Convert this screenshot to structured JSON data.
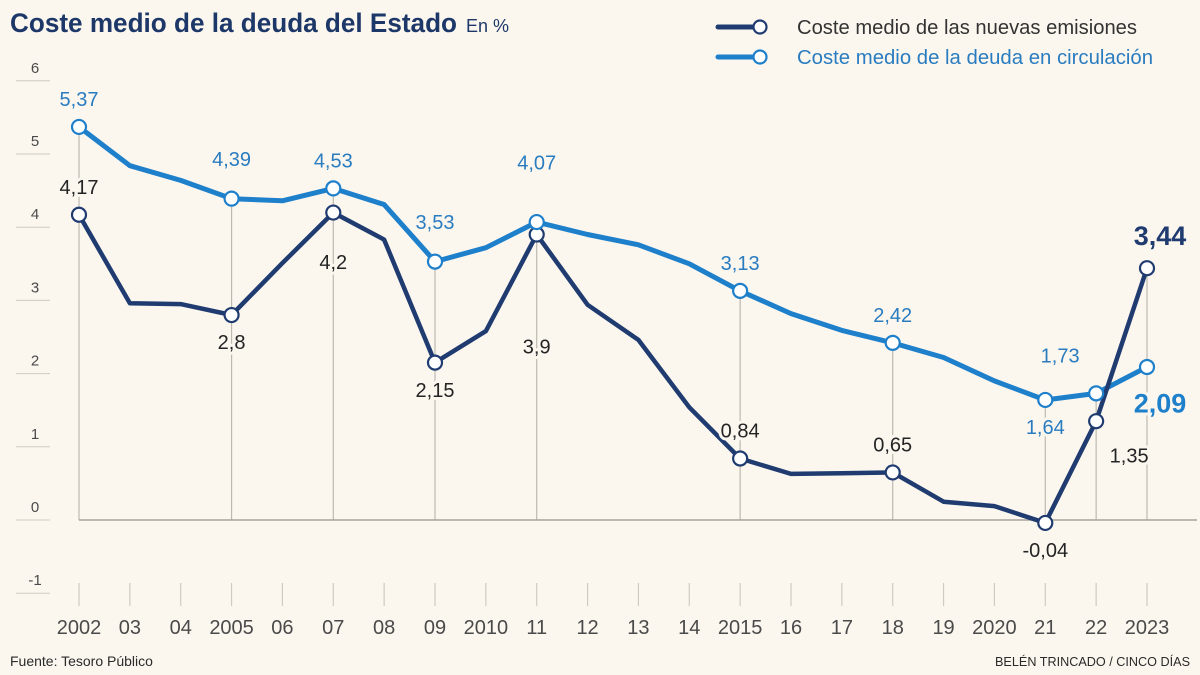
{
  "colors": {
    "background": "#fbf7ef",
    "title": "#1d3868",
    "axis_text": "#4a4a4a",
    "grid": "#cfcbc3",
    "zero_line": "#a7a39b",
    "marker_fill": "#ffffff"
  },
  "footer": {
    "source": "Fuente: Tesoro Público",
    "credit": "BELÉN TRINCADO / CINCO DÍAS"
  },
  "chart_data": {
    "type": "line",
    "title": "Coste medio de la deuda del Estado",
    "subtitle": "En %",
    "xlabel": "",
    "ylabel": "",
    "x": [
      2002,
      2003,
      2004,
      2005,
      2006,
      2007,
      2008,
      2009,
      2010,
      2011,
      2012,
      2013,
      2014,
      2015,
      2016,
      2017,
      2018,
      2019,
      2020,
      2021,
      2022,
      2023
    ],
    "x_tick_labels": [
      "2002",
      "03",
      "04",
      "2005",
      "06",
      "07",
      "08",
      "09",
      "2010",
      "11",
      "12",
      "13",
      "14",
      "2015",
      "16",
      "17",
      "18",
      "19",
      "2020",
      "21",
      "22",
      "2023"
    ],
    "y_ticks": [
      6,
      5,
      4,
      3,
      2,
      1,
      0,
      -1
    ],
    "y_tick_labels": [
      "6",
      "5",
      "4",
      "3",
      "2",
      "1",
      "0",
      "-1"
    ],
    "ylim": [
      -1,
      6
    ],
    "grid": false,
    "legend_position": "top-right",
    "series": [
      {
        "name": "Coste medio de las nuevas emisiones",
        "key": "new-issues",
        "color": "#1f3b70",
        "label_color": "#242424",
        "values": [
          4.17,
          2.96,
          2.95,
          2.8,
          3.51,
          4.2,
          3.83,
          2.15,
          2.58,
          3.9,
          2.94,
          2.46,
          1.54,
          0.84,
          0.63,
          0.64,
          0.65,
          0.25,
          0.19,
          -0.04,
          1.35,
          3.44
        ],
        "labels": [
          {
            "year": 2002,
            "text": "4,17",
            "placement": "above"
          },
          {
            "year": 2005,
            "text": "2,8",
            "placement": "below"
          },
          {
            "year": 2007,
            "text": "4,2",
            "placement": "below-mid"
          },
          {
            "year": 2009,
            "text": "2,15",
            "placement": "below"
          },
          {
            "year": 2011,
            "text": "3,9",
            "placement": "below-far"
          },
          {
            "year": 2015,
            "text": "0,84",
            "placement": "above"
          },
          {
            "year": 2018,
            "text": "0,65",
            "placement": "above"
          },
          {
            "year": 2021,
            "text": "-0,04",
            "placement": "below"
          },
          {
            "year": 2022,
            "text": "1,35",
            "placement": "lower-right"
          },
          {
            "year": 2023,
            "text": "3,44",
            "placement": "above-right",
            "emphasis": true
          }
        ]
      },
      {
        "name": "Coste medio de la deuda en circulación",
        "key": "outstanding",
        "color": "#1e7fcb",
        "label_color": "#2a7cc0",
        "values": [
          5.37,
          4.84,
          4.64,
          4.39,
          4.36,
          4.53,
          4.31,
          3.53,
          3.72,
          4.07,
          3.9,
          3.76,
          3.5,
          3.13,
          2.82,
          2.59,
          2.42,
          2.22,
          1.9,
          1.64,
          1.73,
          2.09
        ],
        "labels": [
          {
            "year": 2002,
            "text": "5,37",
            "placement": "above"
          },
          {
            "year": 2005,
            "text": "4,39",
            "placement": "above-mid"
          },
          {
            "year": 2007,
            "text": "4,53",
            "placement": "above"
          },
          {
            "year": 2009,
            "text": "3,53",
            "placement": "above-mid"
          },
          {
            "year": 2011,
            "text": "4,07",
            "placement": "above-far"
          },
          {
            "year": 2015,
            "text": "3,13",
            "placement": "above"
          },
          {
            "year": 2018,
            "text": "2,42",
            "placement": "above"
          },
          {
            "year": 2021,
            "text": "1,64",
            "placement": "below"
          },
          {
            "year": 2022,
            "text": "1,73",
            "placement": "above-left"
          },
          {
            "year": 2023,
            "text": "2,09",
            "placement": "below-right",
            "emphasis": true
          }
        ]
      }
    ]
  }
}
